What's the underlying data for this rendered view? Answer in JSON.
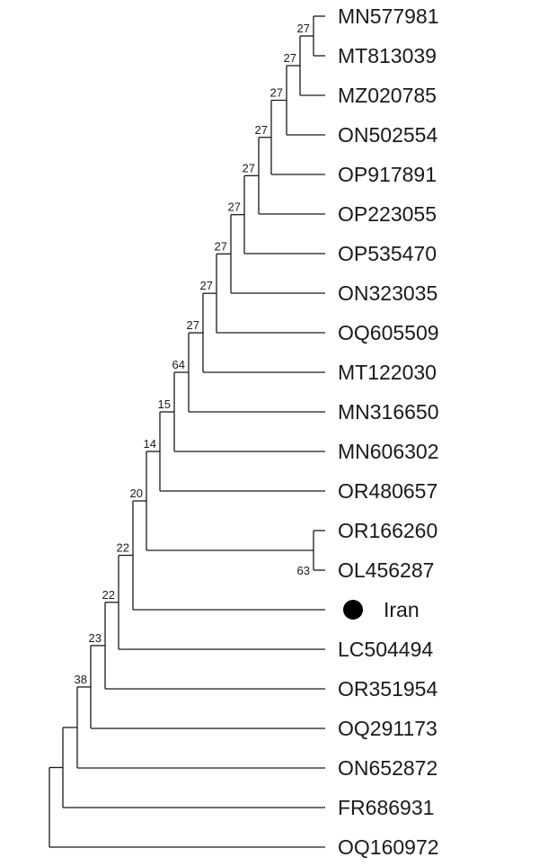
{
  "tree": {
    "taxa": [
      "MN577981",
      "MT813039",
      "MZ020785",
      "ON502554",
      "OP917891",
      "OP223055",
      "OP535470",
      "ON323035",
      "OQ605509",
      "MT122030",
      "MN316650",
      "MN606302",
      "OR480657",
      "OR166260",
      "OL456287",
      "Iran",
      "LC504494",
      "OR351954",
      "OQ291173",
      "ON652872",
      "FR686931",
      "OQ160972"
    ],
    "highlight": {
      "taxon": "Iran",
      "marker": "filled-circle"
    },
    "bootstrap_values": [
      "27",
      "27",
      "27",
      "27",
      "27",
      "27",
      "27",
      "27",
      "27",
      "64",
      "15",
      "14",
      "63",
      "20",
      "22",
      "22",
      "23",
      "38"
    ],
    "line_color": "#1a1a1a"
  }
}
